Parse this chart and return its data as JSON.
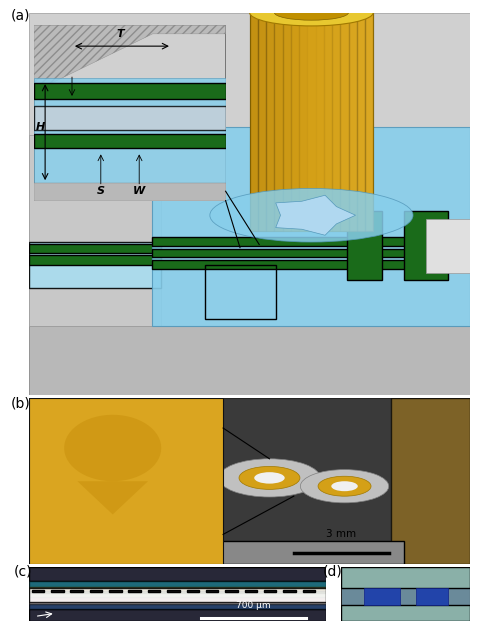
{
  "title": "",
  "panel_labels": [
    "(a)",
    "(b)",
    "(c)",
    "(d)"
  ],
  "panel_label_color": "#000000",
  "panel_label_fontsize": 11,
  "background_color": "#ffffff",
  "figure_width": 4.8,
  "figure_height": 6.27,
  "dpi": 100,
  "colors": {
    "gold": "#D4A017",
    "gold_dark": "#B8860B",
    "light_blue": "#87CEEB",
    "dark_blue": "#4A90D9",
    "green_dark": "#1a5c1a",
    "gray_light": "#C8C8C8",
    "gray_mid": "#A0A0A0",
    "white": "#FFFFFF",
    "black": "#000000",
    "yellow_gold": "#DAA520",
    "bg_b": "#404040"
  },
  "scalebar_b_text": "3 mm",
  "scalebar_c_text": "700 μm",
  "inset_labels": {
    "T": "T",
    "H": "H",
    "S": "S",
    "W": "W"
  }
}
